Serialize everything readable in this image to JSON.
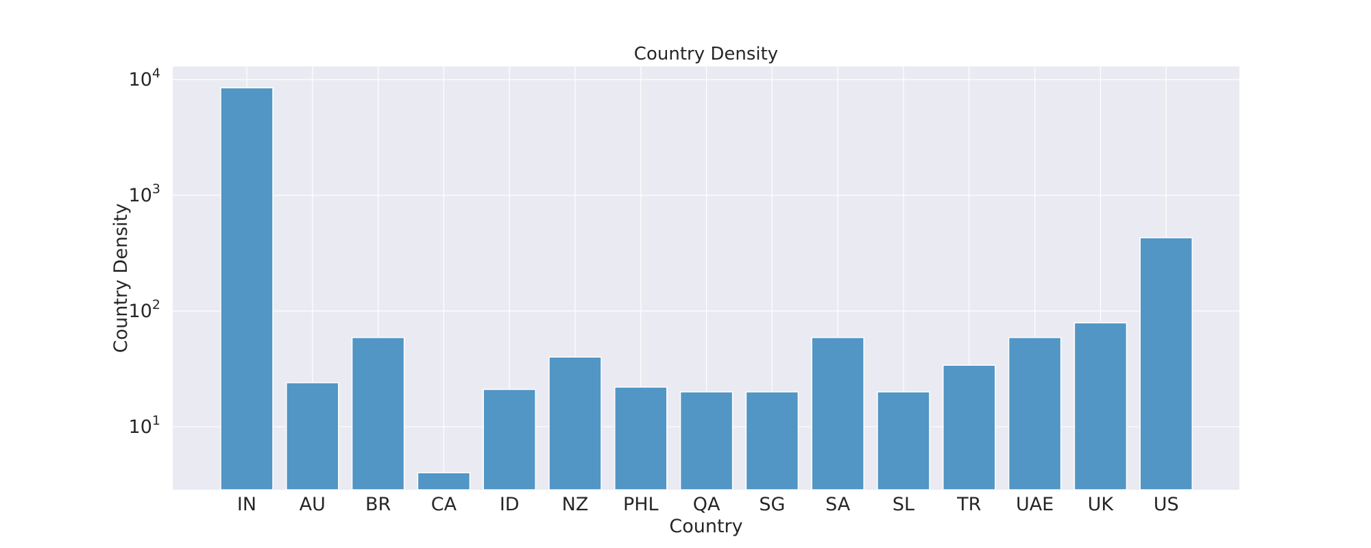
{
  "chart_data": {
    "type": "bar",
    "title": "Country Density",
    "xlabel": "Country",
    "ylabel": "Country Density",
    "y_scale": "log",
    "ylim": [
      2.85,
      13000
    ],
    "grid": true,
    "categories": [
      "IN",
      "AU",
      "BR",
      "CA",
      "ID",
      "NZ",
      "PHL",
      "QA",
      "SG",
      "SA",
      "SL",
      "TR",
      "UAE",
      "UK",
      "US"
    ],
    "values": [
      8500,
      24,
      59,
      4,
      21,
      40,
      22,
      20,
      20,
      59,
      20,
      34,
      59,
      79,
      430
    ],
    "y_ticks": [
      {
        "value": 10,
        "base": "10",
        "exp": "1"
      },
      {
        "value": 100,
        "base": "10",
        "exp": "2"
      },
      {
        "value": 1000,
        "base": "10",
        "exp": "3"
      },
      {
        "value": 10000,
        "base": "10",
        "exp": "4"
      }
    ],
    "colors": {
      "bar": "#5196c5",
      "background": "#eaeaf2",
      "grid": "#ffffff"
    }
  }
}
